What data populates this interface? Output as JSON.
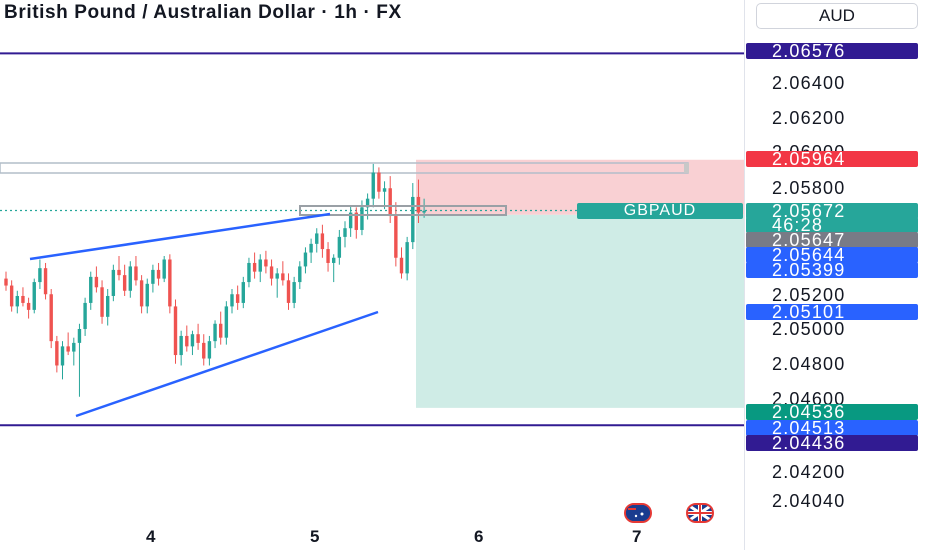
{
  "title": "British Pound / Australian Dollar · 1h · FX",
  "currency_button": "AUD",
  "symbol_label": "GBPAUD",
  "colors": {
    "up": "#26a69a",
    "down": "#ef5350",
    "trendline": "#2962ff",
    "range_line": "#311b92",
    "stop_zone": "#f9d0d3",
    "target_zone": "#cfece6",
    "dotted_price_line": "#26a69a"
  },
  "price_axis": {
    "ticks": [
      "2.06400",
      "2.06200",
      "2.06000",
      "2.05800",
      "2.05200",
      "2.05000",
      "2.04800",
      "2.04600",
      "2.04200",
      "2.04040"
    ]
  },
  "price_tags": [
    {
      "name": "range-high-tag",
      "value": "2.06576",
      "color": "#311b92"
    },
    {
      "name": "stop-loss-tag",
      "value": "2.05964",
      "color": "#f23645"
    },
    {
      "name": "last-price-tag",
      "value": "2.05672",
      "color": "#26a69a"
    },
    {
      "name": "countdown-tag",
      "value": "46:28",
      "color": "#26a69a"
    },
    {
      "name": "entry-price-tag",
      "value": "2.05647",
      "color": "#787b86"
    },
    {
      "name": "blue-tag-1",
      "value": "2.05644",
      "color": "#2962ff"
    },
    {
      "name": "blue-tag-2",
      "value": "2.05399",
      "color": "#2962ff"
    },
    {
      "name": "blue-tag-3",
      "value": "2.05101",
      "color": "#2962ff"
    },
    {
      "name": "take-profit-tag",
      "value": "2.04536",
      "color": "#089981"
    },
    {
      "name": "blue-tag-4",
      "value": "2.04513",
      "color": "#2962ff"
    },
    {
      "name": "range-low-tag",
      "value": "2.04436",
      "color": "#311b92"
    }
  ],
  "time_axis": {
    "labels": [
      "4",
      "5",
      "6",
      "7"
    ]
  },
  "chart_data": {
    "type": "candlestick",
    "symbol": "GBPAUD",
    "timeframe": "1h",
    "x_categories": [
      "4",
      "5",
      "6",
      "7"
    ],
    "ylim": [
      2.0395,
      2.0666
    ],
    "horizontal_levels": [
      2.06576,
      2.04436
    ],
    "short_position": {
      "entry": 2.05647,
      "stop_loss": 2.05964,
      "take_profit": 2.04536
    },
    "last_price": 2.05672,
    "candles": [
      [
        2.0528,
        2.0532,
        2.0521,
        2.0524
      ],
      [
        2.0524,
        2.0527,
        2.0509,
        2.0512
      ],
      [
        2.0512,
        2.0521,
        2.0508,
        2.0518
      ],
      [
        2.0518,
        2.0523,
        2.0512,
        2.0514
      ],
      [
        2.0514,
        2.0517,
        2.0505,
        2.051
      ],
      [
        2.051,
        2.0528,
        2.0508,
        2.0526
      ],
      [
        2.0526,
        2.0539,
        2.0522,
        2.0534
      ],
      [
        2.0534,
        2.0537,
        2.0516,
        2.0519
      ],
      [
        2.0519,
        2.0522,
        2.0488,
        2.0492
      ],
      [
        2.0492,
        2.0495,
        2.0474,
        2.0478
      ],
      [
        2.0478,
        2.0492,
        2.047,
        2.0489
      ],
      [
        2.0489,
        2.0497,
        2.0484,
        2.0486
      ],
      [
        2.0486,
        2.0494,
        2.0478,
        2.0491
      ],
      [
        2.0491,
        2.0502,
        2.046,
        2.0499
      ],
      [
        2.0499,
        2.0517,
        2.0495,
        2.0514
      ],
      [
        2.0514,
        2.0532,
        2.051,
        2.0529
      ],
      [
        2.0529,
        2.0535,
        2.052,
        2.0523
      ],
      [
        2.0523,
        2.0527,
        2.0502,
        2.0506
      ],
      [
        2.0506,
        2.0522,
        2.0501,
        2.0518
      ],
      [
        2.0518,
        2.0536,
        2.0515,
        2.0533
      ],
      [
        2.0533,
        2.0541,
        2.0527,
        2.053
      ],
      [
        2.053,
        2.0536,
        2.0518,
        2.0521
      ],
      [
        2.0521,
        2.0538,
        2.0517,
        2.0535
      ],
      [
        2.0535,
        2.0541,
        2.0524,
        2.0527
      ],
      [
        2.0527,
        2.053,
        2.0508,
        2.0512
      ],
      [
        2.0512,
        2.0528,
        2.0508,
        2.0525
      ],
      [
        2.0525,
        2.0536,
        2.052,
        2.0533
      ],
      [
        2.0533,
        2.0537,
        2.0524,
        2.0528
      ],
      [
        2.0528,
        2.0541,
        2.0526,
        2.0539
      ],
      [
        2.0539,
        2.0542,
        2.0508,
        2.0512
      ],
      [
        2.0512,
        2.0516,
        2.0479,
        2.0484
      ],
      [
        2.0484,
        2.0498,
        2.0478,
        2.0495
      ],
      [
        2.0495,
        2.0501,
        2.0486,
        2.0489
      ],
      [
        2.0489,
        2.0498,
        2.0484,
        2.0496
      ],
      [
        2.0496,
        2.0502,
        2.0487,
        2.0491
      ],
      [
        2.0491,
        2.0496,
        2.0478,
        2.0482
      ],
      [
        2.0482,
        2.0495,
        2.0478,
        2.0492
      ],
      [
        2.0492,
        2.0504,
        2.0488,
        2.0502
      ],
      [
        2.0502,
        2.0509,
        2.049,
        2.0494
      ],
      [
        2.0494,
        2.0515,
        2.049,
        2.0512
      ],
      [
        2.0512,
        2.0522,
        2.0508,
        2.0519
      ],
      [
        2.0519,
        2.0524,
        2.051,
        2.0514
      ],
      [
        2.0514,
        2.0529,
        2.0511,
        2.0526
      ],
      [
        2.0526,
        2.054,
        2.0523,
        2.0537
      ],
      [
        2.0537,
        2.0543,
        2.0528,
        2.0532
      ],
      [
        2.0532,
        2.0542,
        2.0526,
        2.0539
      ],
      [
        2.0539,
        2.0544,
        2.0531,
        2.0535
      ],
      [
        2.0535,
        2.0539,
        2.0524,
        2.0528
      ],
      [
        2.0528,
        2.0534,
        2.0517,
        2.0531
      ],
      [
        2.0531,
        2.0538,
        2.0524,
        2.0527
      ],
      [
        2.0527,
        2.0531,
        2.051,
        2.0514
      ],
      [
        2.0514,
        2.0529,
        2.0511,
        2.0526
      ],
      [
        2.0526,
        2.0538,
        2.0522,
        2.0535
      ],
      [
        2.0535,
        2.0546,
        2.0531,
        2.0543
      ],
      [
        2.0543,
        2.0551,
        2.0537,
        2.0548
      ],
      [
        2.0548,
        2.0557,
        2.0543,
        2.0554
      ],
      [
        2.0554,
        2.0559,
        2.054,
        2.0545
      ],
      [
        2.0545,
        2.0549,
        2.0532,
        2.0537
      ],
      [
        2.0537,
        2.0542,
        2.0526,
        2.054
      ],
      [
        2.054,
        2.0556,
        2.0536,
        2.0552
      ],
      [
        2.0552,
        2.0561,
        2.0546,
        2.0557
      ],
      [
        2.0557,
        2.057,
        2.0552,
        2.0566
      ],
      [
        2.0566,
        2.0569,
        2.0551,
        2.0556
      ],
      [
        2.0556,
        2.0573,
        2.0553,
        2.0569
      ],
      [
        2.0569,
        2.0577,
        2.0562,
        2.0574
      ],
      [
        2.0574,
        2.0594,
        2.0569,
        2.0589
      ],
      [
        2.0589,
        2.0592,
        2.0574,
        2.0578
      ],
      [
        2.0578,
        2.0584,
        2.0568,
        2.058
      ],
      [
        2.058,
        2.0587,
        2.056,
        2.0564
      ],
      [
        2.0564,
        2.0572,
        2.0535,
        2.054
      ],
      [
        2.054,
        2.0546,
        2.0528,
        2.0531
      ],
      [
        2.0531,
        2.0552,
        2.0527,
        2.0549
      ],
      [
        2.0549,
        2.0583,
        2.0545,
        2.0575
      ],
      [
        2.0575,
        2.0585,
        2.056,
        2.0566
      ],
      [
        2.0566,
        2.0574,
        2.0563,
        2.0567
      ]
    ]
  }
}
